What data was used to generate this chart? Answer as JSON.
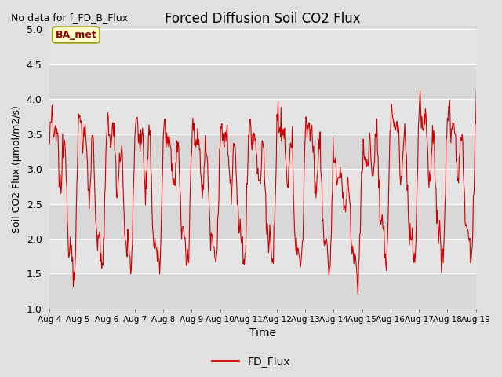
{
  "title": "Forced Diffusion Soil CO2 Flux",
  "xlabel": "Time",
  "ylabel": "Soil CO2 Flux (μmol/m2/s)",
  "ylim": [
    1.0,
    5.0
  ],
  "yticks": [
    1.0,
    1.5,
    2.0,
    2.5,
    3.0,
    3.5,
    4.0,
    4.5,
    5.0
  ],
  "line_color": "#cc0000",
  "legend_label": "FD_Flux",
  "no_data_text": "No data for f_FD_B_Flux",
  "ba_met_label": "BA_met",
  "outer_bg": "#e0e0e0",
  "plot_bg_light": "#e8e8e8",
  "plot_bg_dark": "#d0d0d0",
  "grid_color": "#ffffff",
  "xtick_labels": [
    "Aug 4",
    "Aug 5",
    "Aug 6",
    "Aug 7",
    "Aug 8",
    "Aug 9",
    "Aug 10",
    "Aug 11",
    "Aug 12",
    "Aug 13",
    "Aug 14",
    "Aug 15",
    "Aug 16",
    "Aug 17",
    "Aug 18",
    "Aug 19"
  ]
}
